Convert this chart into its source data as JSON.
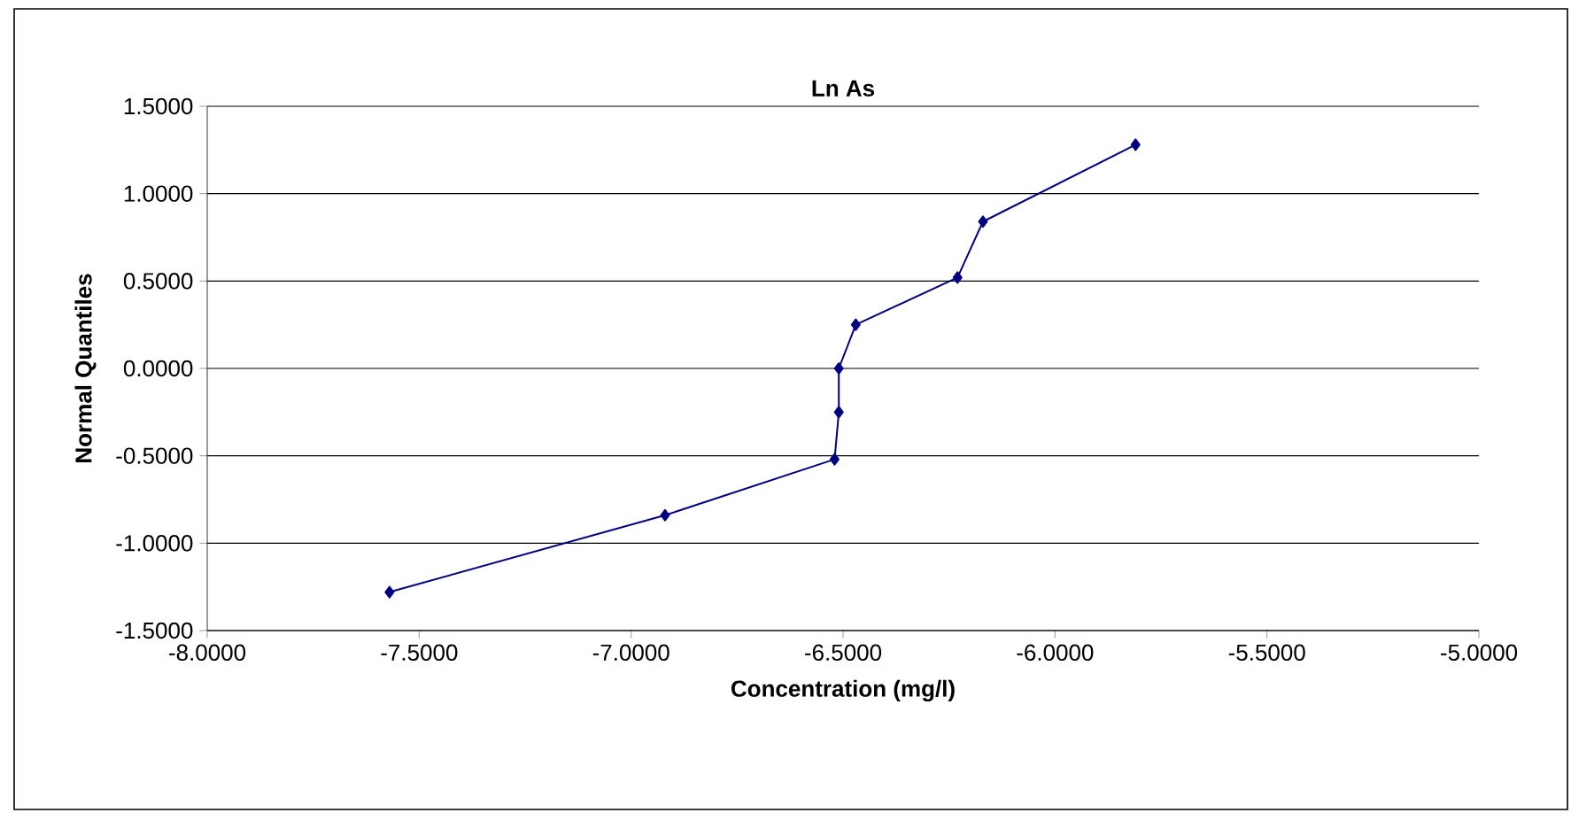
{
  "chart_data": {
    "type": "line",
    "title": "Ln As",
    "xlabel": "Concentration (mg/l)",
    "ylabel": "Normal Quantiles",
    "x": [
      -7.57,
      -6.92,
      -6.52,
      -6.51,
      -6.51,
      -6.47,
      -6.23,
      -6.17,
      -5.81
    ],
    "series": [
      {
        "color": "#000080",
        "values": [
          -1.28,
          -0.84,
          -0.52,
          -0.25,
          0.0,
          0.25,
          0.52,
          0.84,
          1.28
        ]
      }
    ],
    "xlim": [
      -8,
      -5
    ],
    "ylim": [
      -1.5,
      1.5
    ],
    "xticks": [
      {
        "value": -8,
        "label": "-8.0000"
      },
      {
        "value": -7.5,
        "label": "-7.5000"
      },
      {
        "value": -7,
        "label": "-7.0000"
      },
      {
        "value": -6.5,
        "label": "-6.5000"
      },
      {
        "value": -6,
        "label": "-6.0000"
      },
      {
        "value": -5.5,
        "label": "-5.5000"
      },
      {
        "value": -5,
        "label": "-5.0000"
      }
    ],
    "yticks": [
      {
        "value": -1.5,
        "label": "-1.5000"
      },
      {
        "value": -1,
        "label": "-1.0000"
      },
      {
        "value": -0.5,
        "label": "-0.5000"
      },
      {
        "value": 0,
        "label": "0.0000"
      },
      {
        "value": 0.5,
        "label": "0.5000"
      },
      {
        "value": 1,
        "label": "1.0000"
      },
      {
        "value": 1.5,
        "label": "1.5000"
      }
    ],
    "grid": "y",
    "marker": "diamond",
    "line_style": "solid"
  }
}
